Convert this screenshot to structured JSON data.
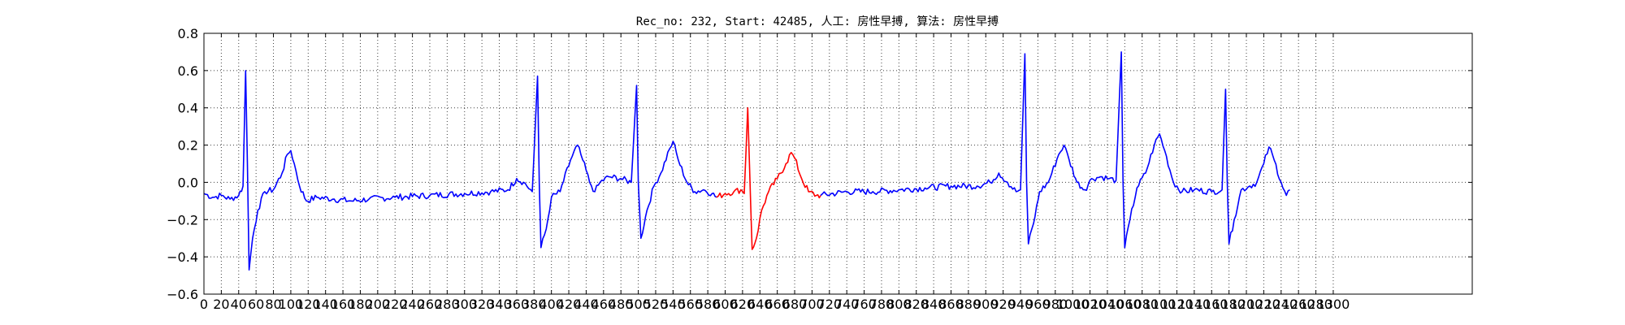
{
  "chart_data": {
    "type": "line",
    "title": "Rec_no: 232, Start: 42485, 人工: 房性早搏, 算法: 房性早搏",
    "xlabel": "",
    "ylabel": "",
    "xlim": [
      0,
      1460
    ],
    "ylim": [
      -0.6,
      0.8
    ],
    "grid": true,
    "yticks": [
      -0.6,
      -0.4,
      -0.2,
      0.0,
      0.2,
      0.4,
      0.6,
      0.8
    ],
    "ytick_labels": [
      "−0.6",
      "−0.4",
      "−0.2",
      "0.0",
      "0.2",
      "0.4",
      "0.6",
      "0.8"
    ],
    "xticks": [
      0,
      20,
      40,
      60,
      80,
      100,
      120,
      140,
      160,
      180,
      200,
      220,
      240,
      260,
      280,
      300,
      320,
      340,
      360,
      380,
      400,
      420,
      440,
      460,
      480,
      500,
      520,
      540,
      560,
      580,
      600,
      620,
      640,
      660,
      680,
      700,
      720,
      740,
      760,
      780,
      800,
      820,
      840,
      860,
      880,
      900,
      920,
      940,
      960,
      980,
      1000,
      1020,
      1040,
      1060,
      1080,
      1100,
      1120,
      1140,
      1160,
      1180,
      1200,
      1220,
      1240,
      1260,
      1280,
      1300
    ],
    "xtick_labels": [
      "0",
      "20",
      "40",
      "60",
      "80",
      "100",
      "120",
      "140",
      "160",
      "180",
      "200",
      "220",
      "240",
      "260",
      "280",
      "300",
      "320",
      "340",
      "360",
      "380",
      "400",
      "420",
      "440",
      "460",
      "480",
      "500",
      "520",
      "540",
      "560",
      "580",
      "600",
      "620",
      "640",
      "660",
      "680",
      "700",
      "720",
      "740",
      "760",
      "780",
      "800",
      "820",
      "840",
      "860",
      "880",
      "900",
      "920",
      "940",
      "960",
      "980",
      "1000",
      "1020",
      "1040",
      "1060",
      "1080",
      "1100",
      "1120",
      "1140",
      "1160",
      "1180",
      "1200",
      "1220",
      "1240",
      "1260",
      "1280",
      "1300"
    ],
    "highlight_range": [
      590,
      710
    ],
    "series": [
      {
        "color": "#0000ff",
        "points": [
          [
            0,
            -0.06
          ],
          [
            10,
            -0.08
          ],
          [
            20,
            -0.07
          ],
          [
            30,
            -0.09
          ],
          [
            40,
            -0.07
          ],
          [
            45,
            -0.02
          ],
          [
            48,
            0.6
          ],
          [
            50,
            0.1
          ],
          [
            52,
            -0.47
          ],
          [
            56,
            -0.3
          ],
          [
            62,
            -0.15
          ],
          [
            70,
            -0.05
          ],
          [
            80,
            -0.04
          ],
          [
            90,
            0.05
          ],
          [
            96,
            0.15
          ],
          [
            100,
            0.17
          ],
          [
            104,
            0.1
          ],
          [
            110,
            -0.02
          ],
          [
            118,
            -0.1
          ],
          [
            130,
            -0.08
          ],
          [
            150,
            -0.09
          ],
          [
            170,
            -0.1
          ],
          [
            190,
            -0.09
          ],
          [
            220,
            -0.08
          ],
          [
            260,
            -0.07
          ],
          [
            300,
            -0.06
          ],
          [
            330,
            -0.05
          ],
          [
            350,
            -0.04
          ],
          [
            360,
            0.02
          ],
          [
            368,
            0.0
          ],
          [
            378,
            -0.05
          ],
          [
            384,
            0.57
          ],
          [
            386,
            0.0
          ],
          [
            388,
            -0.35
          ],
          [
            394,
            -0.25
          ],
          [
            400,
            -0.08
          ],
          [
            410,
            -0.05
          ],
          [
            422,
            0.12
          ],
          [
            430,
            0.2
          ],
          [
            436,
            0.12
          ],
          [
            444,
            0.0
          ],
          [
            450,
            -0.05
          ],
          [
            456,
            0.0
          ],
          [
            466,
            0.03
          ],
          [
            480,
            0.02
          ],
          [
            492,
            0.0
          ],
          [
            498,
            0.52
          ],
          [
            500,
            0.0
          ],
          [
            503,
            -0.3
          ],
          [
            510,
            -0.15
          ],
          [
            518,
            -0.02
          ],
          [
            526,
            0.05
          ],
          [
            536,
            0.18
          ],
          [
            540,
            0.22
          ],
          [
            546,
            0.12
          ],
          [
            556,
            0.0
          ],
          [
            565,
            -0.05
          ],
          [
            575,
            -0.04
          ],
          [
            585,
            -0.06
          ],
          [
            590,
            -0.08
          ]
        ]
      },
      {
        "color": "#ff0000",
        "points": [
          [
            590,
            -0.08
          ],
          [
            600,
            -0.06
          ],
          [
            610,
            -0.05
          ],
          [
            618,
            -0.04
          ],
          [
            622,
            -0.06
          ],
          [
            626,
            0.4
          ],
          [
            628,
            0.1
          ],
          [
            631,
            -0.36
          ],
          [
            636,
            -0.3
          ],
          [
            642,
            -0.15
          ],
          [
            650,
            -0.05
          ],
          [
            660,
            0.02
          ],
          [
            670,
            0.1
          ],
          [
            676,
            0.16
          ],
          [
            680,
            0.13
          ],
          [
            688,
            0.02
          ],
          [
            696,
            -0.05
          ],
          [
            705,
            -0.07
          ],
          [
            710,
            -0.07
          ]
        ]
      },
      {
        "color": "#0000ff",
        "points": [
          [
            710,
            -0.07
          ],
          [
            740,
            -0.05
          ],
          [
            770,
            -0.05
          ],
          [
            800,
            -0.04
          ],
          [
            830,
            -0.03
          ],
          [
            860,
            -0.02
          ],
          [
            890,
            -0.02
          ],
          [
            905,
            0.0
          ],
          [
            915,
            0.05
          ],
          [
            925,
            0.0
          ],
          [
            935,
            -0.05
          ],
          [
            940,
            -0.04
          ],
          [
            945,
            0.69
          ],
          [
            947,
            0.0
          ],
          [
            949,
            -0.33
          ],
          [
            955,
            -0.22
          ],
          [
            962,
            -0.05
          ],
          [
            972,
            0.0
          ],
          [
            984,
            0.15
          ],
          [
            990,
            0.2
          ],
          [
            996,
            0.12
          ],
          [
            1005,
            0.0
          ],
          [
            1014,
            -0.04
          ],
          [
            1022,
            0.02
          ],
          [
            1032,
            0.03
          ],
          [
            1042,
            0.02
          ],
          [
            1050,
            0.01
          ],
          [
            1056,
            0.7
          ],
          [
            1058,
            0.0
          ],
          [
            1060,
            -0.35
          ],
          [
            1066,
            -0.2
          ],
          [
            1074,
            -0.03
          ],
          [
            1084,
            0.05
          ],
          [
            1094,
            0.2
          ],
          [
            1100,
            0.26
          ],
          [
            1106,
            0.17
          ],
          [
            1116,
            0.0
          ],
          [
            1126,
            -0.05
          ],
          [
            1140,
            -0.04
          ],
          [
            1160,
            -0.05
          ],
          [
            1172,
            -0.04
          ],
          [
            1176,
            0.5
          ],
          [
            1178,
            0.0
          ],
          [
            1180,
            -0.33
          ],
          [
            1186,
            -0.2
          ],
          [
            1194,
            -0.04
          ],
          [
            1204,
            -0.02
          ],
          [
            1212,
            0.0
          ],
          [
            1220,
            0.1
          ],
          [
            1226,
            0.19
          ],
          [
            1232,
            0.12
          ],
          [
            1240,
            0.0
          ],
          [
            1246,
            -0.07
          ],
          [
            1250,
            -0.04
          ]
        ]
      }
    ]
  }
}
